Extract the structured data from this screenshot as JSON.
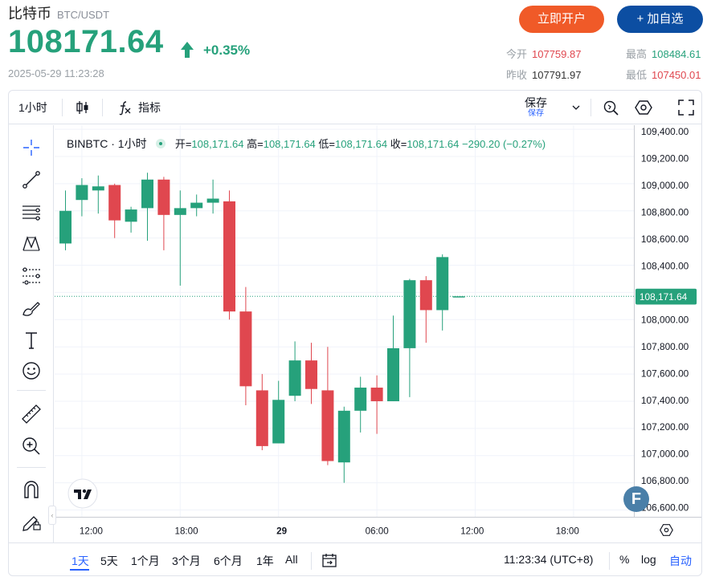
{
  "header": {
    "title": "比特币",
    "pair": "BTC/USDT",
    "price": "108171.64",
    "change": "+0.35%",
    "timestamp": "2025-05-29 11:23:28",
    "open_account_label": "立即开户",
    "add_watch_label": "+ 加自选",
    "stats": {
      "open_label": "今开",
      "open_value": "107759.87",
      "high_label": "最高",
      "high_value": "108484.61",
      "prev_close_label": "昨收",
      "prev_close_value": "107791.97",
      "low_label": "最低",
      "low_value": "107450.01"
    }
  },
  "toolbar": {
    "interval": "1小时",
    "indicators_label": "指标",
    "save_label": "保存",
    "save_sub": "保存"
  },
  "legend": {
    "symbol": "BINBTC · 1小时",
    "open_k": "开=",
    "open_v": "108,171.64",
    "high_k": "高=",
    "high_v": "108,171.64",
    "low_k": "低=",
    "low_v": "108,171.64",
    "close_k": "收=",
    "close_v": "108,171.64",
    "change": "−290.20 (−0.27%)"
  },
  "last_price_tag": "108,171.64",
  "colors": {
    "up": "#26a17b",
    "down": "#e0474f",
    "accent": "#2962ff",
    "orange": "#f05a28",
    "navy": "#0c4ea2"
  },
  "chart_data": {
    "type": "candlestick",
    "ylim": [
      106550,
      109430
    ],
    "y_ticks": [
      "109,400.00",
      "109,200.00",
      "109,000.00",
      "108,800.00",
      "108,600.00",
      "108,400.00",
      "108,200.00",
      "108,000.00",
      "107,800.00",
      "107,600.00",
      "107,400.00",
      "107,200.00",
      "107,000.00",
      "106,800.00",
      "106,600.00"
    ],
    "y_tick_values": [
      109400,
      109200,
      109000,
      108800,
      108600,
      108400,
      108200,
      108000,
      107800,
      107600,
      107400,
      107200,
      107000,
      106800,
      106600
    ],
    "x_ticks": [
      "12:00",
      "18:00",
      "29",
      "06:00",
      "12:00",
      "18:00"
    ],
    "x_tick_index": [
      1,
      7,
      13,
      19,
      25,
      31
    ],
    "last_price": 108171.64,
    "candles": [
      {
        "o": 108560,
        "h": 108950,
        "l": 108510,
        "c": 108800
      },
      {
        "o": 108880,
        "h": 109040,
        "l": 108760,
        "c": 108990
      },
      {
        "o": 108950,
        "h": 109060,
        "l": 108780,
        "c": 108980
      },
      {
        "o": 108990,
        "h": 109000,
        "l": 108600,
        "c": 108730
      },
      {
        "o": 108720,
        "h": 108830,
        "l": 108640,
        "c": 108810
      },
      {
        "o": 108820,
        "h": 109080,
        "l": 108580,
        "c": 109030
      },
      {
        "o": 109030,
        "h": 109050,
        "l": 108510,
        "c": 108770
      },
      {
        "o": 108770,
        "h": 108950,
        "l": 108250,
        "c": 108820
      },
      {
        "o": 108820,
        "h": 108920,
        "l": 108760,
        "c": 108860
      },
      {
        "o": 108860,
        "h": 109030,
        "l": 108780,
        "c": 108890
      },
      {
        "o": 108870,
        "h": 108950,
        "l": 108000,
        "c": 108060
      },
      {
        "o": 108060,
        "h": 108240,
        "l": 107370,
        "c": 107510
      },
      {
        "o": 107480,
        "h": 107600,
        "l": 107040,
        "c": 107070
      },
      {
        "o": 107090,
        "h": 107550,
        "l": 107090,
        "c": 107410
      },
      {
        "o": 107440,
        "h": 107840,
        "l": 107400,
        "c": 107700
      },
      {
        "o": 107700,
        "h": 107830,
        "l": 107380,
        "c": 107490
      },
      {
        "o": 107480,
        "h": 107800,
        "l": 106930,
        "c": 106960
      },
      {
        "o": 106950,
        "h": 107360,
        "l": 106800,
        "c": 107330
      },
      {
        "o": 107330,
        "h": 107580,
        "l": 107170,
        "c": 107500
      },
      {
        "o": 107500,
        "h": 107590,
        "l": 107160,
        "c": 107400
      },
      {
        "o": 107400,
        "h": 108030,
        "l": 107400,
        "c": 107790
      },
      {
        "o": 107790,
        "h": 108300,
        "l": 107430,
        "c": 108290
      },
      {
        "o": 108290,
        "h": 108320,
        "l": 107830,
        "c": 108070
      },
      {
        "o": 108070,
        "h": 108480,
        "l": 107920,
        "c": 108460
      },
      {
        "o": 108171.64,
        "h": 108171.64,
        "l": 108171.64,
        "c": 108171.64
      }
    ]
  },
  "bottom": {
    "ranges": [
      "1天",
      "5天",
      "1个月",
      "3个月",
      "6个月",
      "1年",
      "All"
    ],
    "time": "11:23:34 (UTC+8)",
    "pct": "%",
    "log": "log",
    "auto": "自动"
  }
}
